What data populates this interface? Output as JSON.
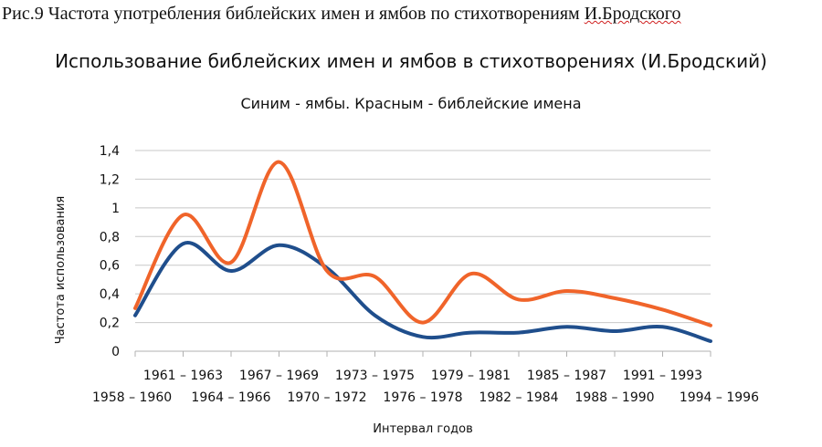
{
  "figure_caption_prefix": "Рис.9 Частота употребления библейских имен и ямбов по стихотворениям ",
  "figure_caption_name": "И.Бродского",
  "chart_data": {
    "type": "line",
    "title": "Использование библейских имен и ямбов в стихотворениях (И.Бродский)",
    "subtitle": "Синим - ямбы. Красным - библейские имена",
    "xlabel": "Интервал годов",
    "ylabel": "Частота использования",
    "ylim": [
      0,
      1.4
    ],
    "yticks": [
      "0",
      "0,2",
      "0,4",
      "0,6",
      "0,8",
      "1",
      "1,2",
      "1,4"
    ],
    "categories": [
      "1958 – 1960",
      "1961 – 1963",
      "1964 – 1966",
      "1967 – 1969",
      "1970 – 1972",
      "1973 – 1975",
      "1976 – 1978",
      "1979 – 1981",
      "1982 – 1984",
      "1985 – 1987",
      "1988 – 1990",
      "1991 – 1993",
      "1994 – 1996"
    ],
    "series": [
      {
        "values": [
          0.25,
          0.75,
          0.56,
          0.74,
          0.58,
          0.25,
          0.1,
          0.13,
          0.13,
          0.17,
          0.14,
          0.17,
          0.07
        ],
        "color": "#1f4e8c"
      },
      {
        "values": [
          0.3,
          0.95,
          0.62,
          1.32,
          0.56,
          0.52,
          0.2,
          0.54,
          0.36,
          0.42,
          0.37,
          0.29,
          0.18
        ],
        "color": "#f0642a"
      }
    ],
    "grid": true,
    "legend": "none"
  }
}
